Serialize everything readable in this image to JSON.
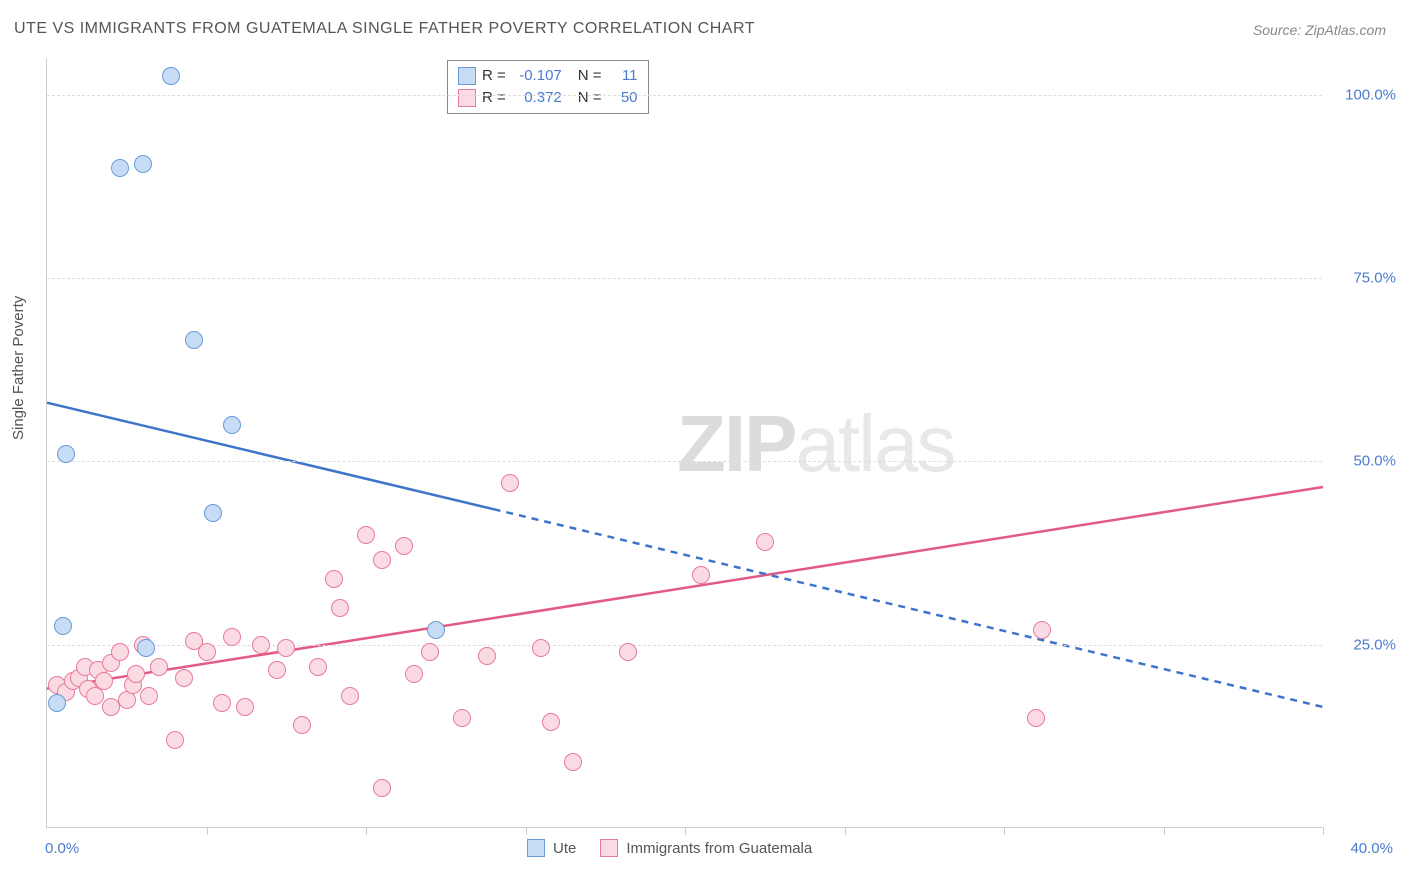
{
  "title": "UTE VS IMMIGRANTS FROM GUATEMALA SINGLE FATHER POVERTY CORRELATION CHART",
  "source_label": "Source: ZipAtlas.com",
  "y_axis_title": "Single Father Poverty",
  "watermark_bold": "ZIP",
  "watermark_rest": "atlas",
  "chart": {
    "type": "scatter-with-regression",
    "background_color": "#ffffff",
    "grid_color": "#dddddd",
    "axis_color": "#cccccc",
    "xlim": [
      0,
      40
    ],
    "ylim": [
      0,
      105
    ],
    "y_ticks": [
      {
        "value": 25,
        "label": "25.0%"
      },
      {
        "value": 50,
        "label": "50.0%"
      },
      {
        "value": 75,
        "label": "75.0%"
      },
      {
        "value": 100,
        "label": "100.0%"
      }
    ],
    "x_ticks": [
      0,
      5,
      10,
      15,
      20,
      25,
      30,
      35,
      40
    ],
    "x_tick_labels": {
      "0": "0.0%",
      "40": "40.0%"
    },
    "tick_label_color": "#4a7bd0",
    "tick_label_fontsize": 15,
    "axis_title_fontsize": 15,
    "axis_title_color": "#555555",
    "point_radius": 9,
    "point_stroke_width": 1.5,
    "series": [
      {
        "name": "Ute",
        "fill": "#c7dcf5",
        "stroke": "#6a9ad8",
        "line_color": "#3e74c9",
        "R": "-0.107",
        "N": "11",
        "points": [
          [
            3.9,
            102.5
          ],
          [
            2.3,
            90.0
          ],
          [
            3.0,
            90.5
          ],
          [
            4.6,
            66.5
          ],
          [
            5.8,
            55.0
          ],
          [
            0.6,
            51.0
          ],
          [
            5.2,
            43.0
          ],
          [
            0.5,
            27.5
          ],
          [
            3.1,
            24.5
          ],
          [
            0.3,
            17.0
          ],
          [
            12.2,
            27.0
          ]
        ],
        "regression": {
          "solid_from_x": 0,
          "solid_to_x": 14,
          "dash_to_x": 40,
          "y_at_x0": 58,
          "y_at_x40": 16.5
        }
      },
      {
        "name": "Immigrants from Guatemala",
        "fill": "#fbdbe3",
        "stroke": "#e87a9a",
        "line_color": "#e35a85",
        "R": "0.372",
        "N": "50",
        "points": [
          [
            0.3,
            19.5
          ],
          [
            0.6,
            18.5
          ],
          [
            0.8,
            20.0
          ],
          [
            1.0,
            20.5
          ],
          [
            1.2,
            22.0
          ],
          [
            1.3,
            19.0
          ],
          [
            1.5,
            18.0
          ],
          [
            1.6,
            21.5
          ],
          [
            1.8,
            20.0
          ],
          [
            2.0,
            22.5
          ],
          [
            2.0,
            16.5
          ],
          [
            2.3,
            24.0
          ],
          [
            2.5,
            17.5
          ],
          [
            2.7,
            19.5
          ],
          [
            2.8,
            21.0
          ],
          [
            3.0,
            25.0
          ],
          [
            3.2,
            18.0
          ],
          [
            3.5,
            22.0
          ],
          [
            4.0,
            12.0
          ],
          [
            4.3,
            20.5
          ],
          [
            4.6,
            25.5
          ],
          [
            5.0,
            24.0
          ],
          [
            5.5,
            17.0
          ],
          [
            5.8,
            26.0
          ],
          [
            6.2,
            16.5
          ],
          [
            6.7,
            25.0
          ],
          [
            7.2,
            21.5
          ],
          [
            7.5,
            24.5
          ],
          [
            8.0,
            14.0
          ],
          [
            8.5,
            22.0
          ],
          [
            9.0,
            34.0
          ],
          [
            9.2,
            30.0
          ],
          [
            9.5,
            18.0
          ],
          [
            10.0,
            40.0
          ],
          [
            10.5,
            36.5
          ],
          [
            10.5,
            5.5
          ],
          [
            11.2,
            38.5
          ],
          [
            11.5,
            21.0
          ],
          [
            12.0,
            24.0
          ],
          [
            13.0,
            15.0
          ],
          [
            13.8,
            23.5
          ],
          [
            14.5,
            47.0
          ],
          [
            15.5,
            24.5
          ],
          [
            15.8,
            14.5
          ],
          [
            16.5,
            9.0
          ],
          [
            18.2,
            24.0
          ],
          [
            20.5,
            34.5
          ],
          [
            22.5,
            39.0
          ],
          [
            31.2,
            27.0
          ],
          [
            31.0,
            15.0
          ]
        ],
        "regression": {
          "solid_from_x": 0,
          "solid_to_x": 40,
          "y_at_x0": 19,
          "y_at_x40": 46.5
        }
      }
    ]
  },
  "legend": {
    "r_prefix": "R = ",
    "n_prefix": "N = "
  },
  "bottom_legend": {
    "items": [
      "Ute",
      "Immigrants from Guatemala"
    ]
  }
}
